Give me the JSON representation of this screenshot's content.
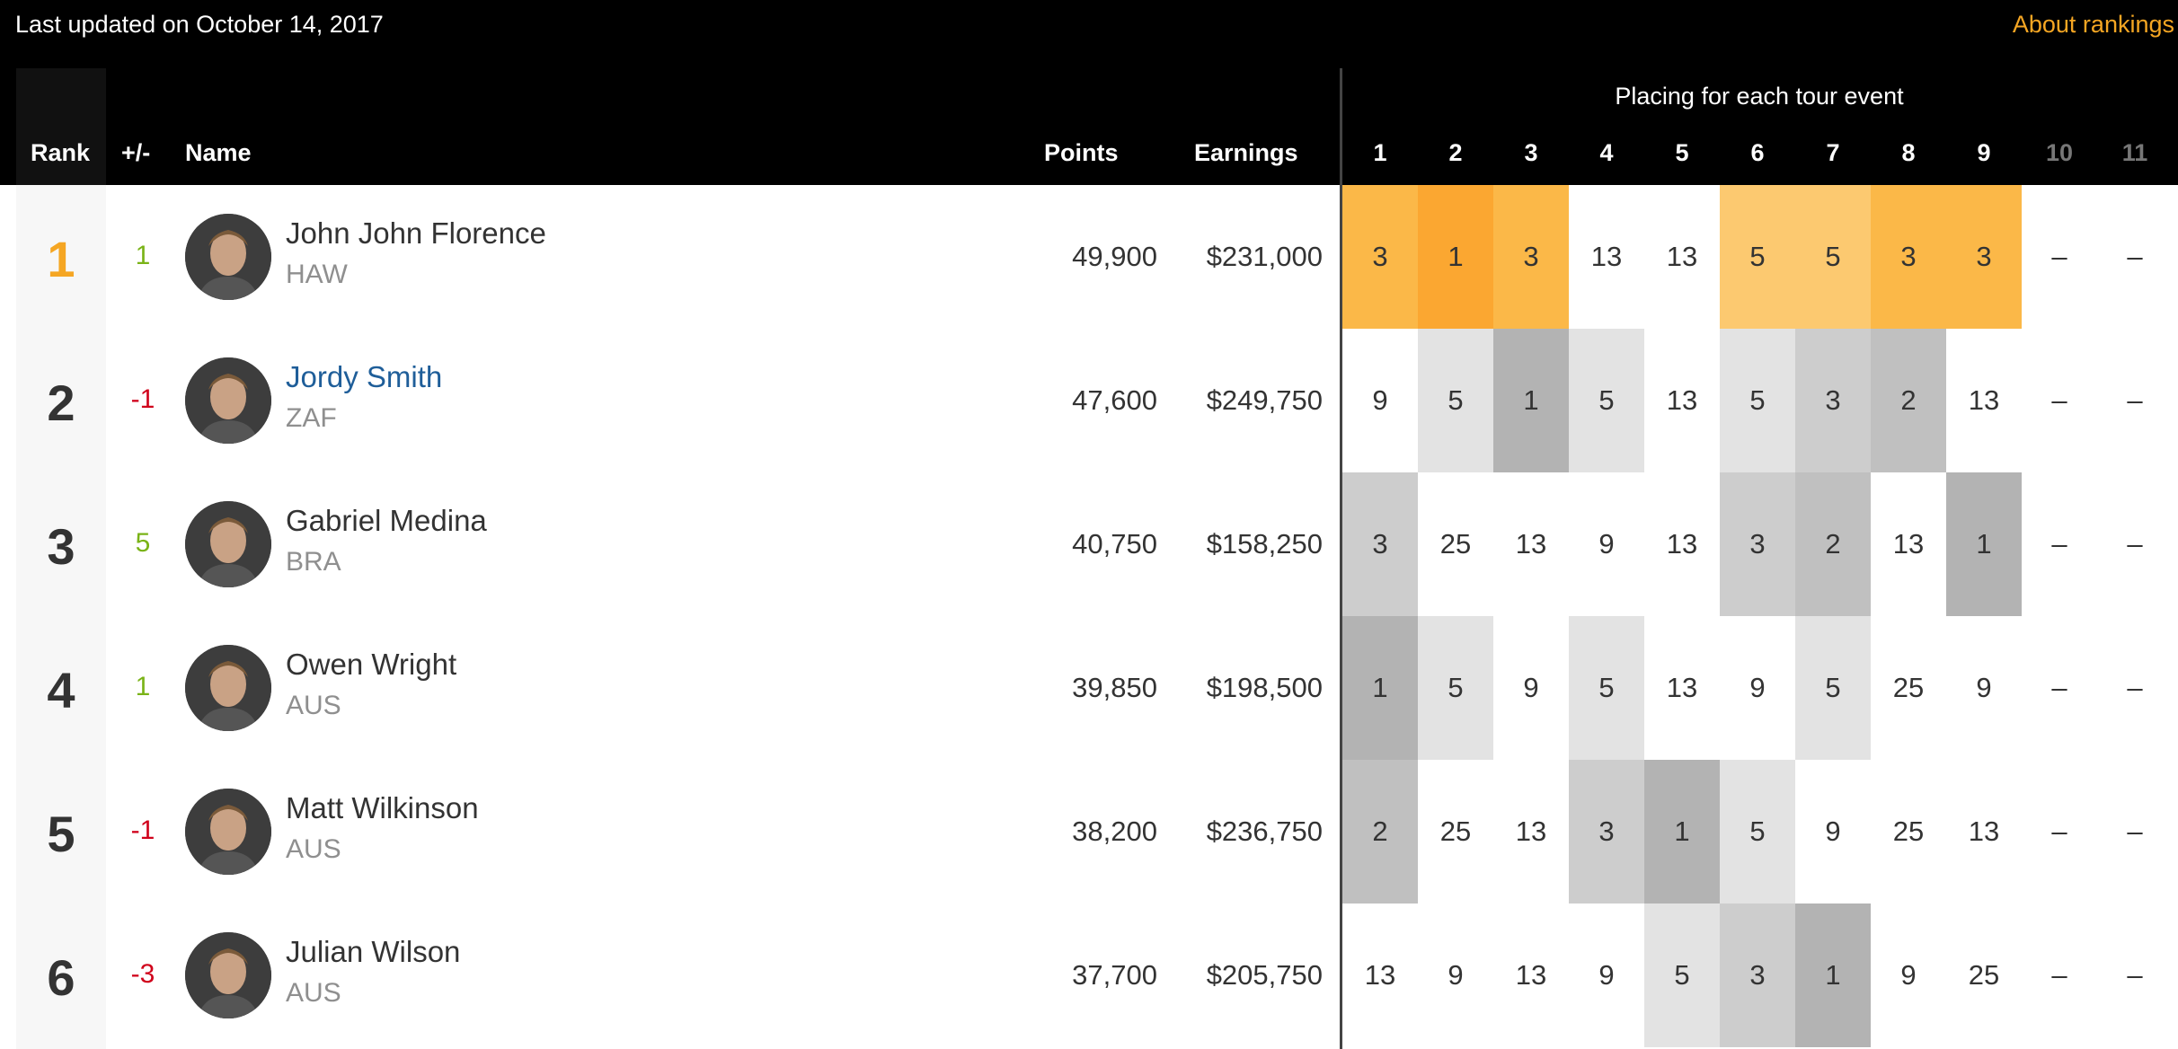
{
  "header": {
    "updated": "Last updated on October 14, 2017",
    "about": "About rankings",
    "placing_title": "Placing for each tour event"
  },
  "columns": {
    "rank": "Rank",
    "change": "+/-",
    "name": "Name",
    "points": "Points",
    "earnings": "Earnings",
    "events": [
      "1",
      "2",
      "3",
      "4",
      "5",
      "6",
      "7",
      "8",
      "9",
      "10",
      "11"
    ]
  },
  "colors": {
    "accent": "#f5a623",
    "link": "#1f5e99",
    "up": "#7ab317",
    "down": "#d0021b"
  },
  "rows": [
    {
      "rank": "1",
      "change": "1",
      "name": "John John Florence",
      "country": "HAW",
      "points": "49,900",
      "earnings": "$231,000",
      "placings": [
        "3",
        "1",
        "3",
        "13",
        "13",
        "5",
        "5",
        "3",
        "3",
        "–",
        "–"
      ]
    },
    {
      "rank": "2",
      "change": "-1",
      "name": "Jordy Smith",
      "country": "ZAF",
      "points": "47,600",
      "earnings": "$249,750",
      "placings": [
        "9",
        "5",
        "1",
        "5",
        "13",
        "5",
        "3",
        "2",
        "13",
        "–",
        "–"
      ]
    },
    {
      "rank": "3",
      "change": "5",
      "name": "Gabriel Medina",
      "country": "BRA",
      "points": "40,750",
      "earnings": "$158,250",
      "placings": [
        "3",
        "25",
        "13",
        "9",
        "13",
        "3",
        "2",
        "13",
        "1",
        "–",
        "–"
      ]
    },
    {
      "rank": "4",
      "change": "1",
      "name": "Owen Wright",
      "country": "AUS",
      "points": "39,850",
      "earnings": "$198,500",
      "placings": [
        "1",
        "5",
        "9",
        "5",
        "13",
        "9",
        "5",
        "25",
        "9",
        "–",
        "–"
      ]
    },
    {
      "rank": "5",
      "change": "-1",
      "name": "Matt Wilkinson",
      "country": "AUS",
      "points": "38,200",
      "earnings": "$236,750",
      "placings": [
        "2",
        "25",
        "13",
        "3",
        "1",
        "5",
        "9",
        "25",
        "13",
        "–",
        "–"
      ]
    },
    {
      "rank": "6",
      "change": "-3",
      "name": "Julian Wilson",
      "country": "AUS",
      "points": "37,700",
      "earnings": "$205,750",
      "placings": [
        "13",
        "9",
        "13",
        "9",
        "5",
        "3",
        "1",
        "9",
        "25",
        "–",
        "–"
      ]
    }
  ]
}
